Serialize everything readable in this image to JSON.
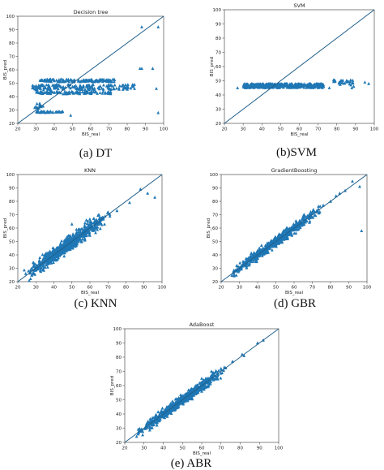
{
  "figure": {
    "marker_color": "#1f77b4",
    "line_color": "#1f5f8b"
  },
  "chart_data": [
    {
      "type": "scatter",
      "title": "Decision tree",
      "caption": "(a) DT",
      "xlabel": "BIS_real",
      "ylabel": "BIS_pred",
      "xlim": [
        20,
        100
      ],
      "ylim": [
        20,
        100
      ],
      "xticks": [
        20,
        30,
        40,
        50,
        60,
        70,
        80,
        90,
        100
      ],
      "yticks": [
        20,
        30,
        40,
        50,
        60,
        70,
        80,
        90,
        100
      ],
      "marker": "triangle",
      "reference_line": "y = x",
      "clusters": [
        {
          "x_range": [
            32,
            73
          ],
          "y_range": [
            51,
            53
          ],
          "count": 140
        },
        {
          "x_range": [
            28,
            84
          ],
          "y_range": [
            45,
            49
          ],
          "count": 170
        },
        {
          "x_range": [
            30,
            71
          ],
          "y_range": [
            42,
            44
          ],
          "count": 100
        },
        {
          "x_range": [
            30,
            45
          ],
          "y_range": [
            28,
            29
          ],
          "count": 40
        },
        {
          "x_range": [
            29,
            34
          ],
          "y_range": [
            31,
            36
          ],
          "count": 14
        }
      ],
      "points": [
        [
          88,
          92
        ],
        [
          97,
          92
        ],
        [
          87,
          61
        ],
        [
          88,
          61
        ],
        [
          94,
          61
        ],
        [
          84,
          46
        ],
        [
          96,
          46
        ],
        [
          97,
          28
        ],
        [
          49,
          26
        ],
        [
          31,
          30
        ],
        [
          32,
          35
        ]
      ]
    },
    {
      "type": "scatter",
      "title": "SVM",
      "caption": "(b)SVM",
      "xlabel": "BIS_real",
      "ylabel": "BIS_pred",
      "xlim": [
        20,
        100
      ],
      "ylim": [
        20,
        100
      ],
      "xticks": [
        20,
        30,
        40,
        50,
        60,
        70,
        80,
        90,
        100
      ],
      "yticks": [
        20,
        30,
        40,
        50,
        60,
        70,
        80,
        90,
        100
      ],
      "marker": "triangle",
      "reference_line": "y = x",
      "clusters": [
        {
          "x_range": [
            30,
            73
          ],
          "y_range": [
            45,
            48
          ],
          "count": 420
        },
        {
          "x_range": [
            78,
            89
          ],
          "y_range": [
            47,
            51
          ],
          "count": 30
        }
      ],
      "points": [
        [
          27,
          45
        ],
        [
          76,
          45
        ],
        [
          95,
          49
        ],
        [
          97,
          48
        ],
        [
          88,
          45
        ],
        [
          89,
          46
        ]
      ]
    },
    {
      "type": "scatter",
      "title": "KNN",
      "caption": "(c) KNN",
      "xlabel": "BIS_real",
      "ylabel": "BIS_pred",
      "xlim": [
        20,
        100
      ],
      "ylim": [
        20,
        100
      ],
      "xticks": [
        20,
        30,
        40,
        50,
        60,
        70,
        80,
        90,
        100
      ],
      "yticks": [
        20,
        30,
        40,
        50,
        60,
        70,
        80,
        90,
        100
      ],
      "marker": "triangle",
      "reference_line": "y = x",
      "diagonal_band": {
        "x_range": [
          23,
          72
        ],
        "spread": 6,
        "count": 650
      },
      "points": [
        [
          88,
          89
        ],
        [
          92,
          86
        ],
        [
          96,
          83
        ],
        [
          70,
          72
        ],
        [
          75,
          73
        ],
        [
          58,
          66
        ],
        [
          62,
          67
        ],
        [
          65,
          70
        ],
        [
          82,
          79
        ],
        [
          50,
          63
        ]
      ]
    },
    {
      "type": "scatter",
      "title": "GradientBoosting",
      "caption": "(d) GBR",
      "xlabel": "BIS_real",
      "ylabel": "BIS_pred",
      "xlim": [
        20,
        100
      ],
      "ylim": [
        20,
        100
      ],
      "xticks": [
        20,
        30,
        40,
        50,
        60,
        70,
        80,
        90,
        100
      ],
      "yticks": [
        20,
        30,
        40,
        50,
        60,
        70,
        80,
        90,
        100
      ],
      "marker": "triangle",
      "reference_line": "y = x",
      "diagonal_band": {
        "x_range": [
          24,
          75
        ],
        "spread": 4,
        "count": 650
      },
      "points": [
        [
          92,
          95
        ],
        [
          96,
          91
        ],
        [
          88,
          88
        ],
        [
          85,
          86
        ],
        [
          80,
          80
        ],
        [
          76,
          77
        ],
        [
          97,
          58
        ],
        [
          65,
          69
        ],
        [
          70,
          72
        ],
        [
          83,
          84
        ]
      ]
    },
    {
      "type": "scatter",
      "title": "AdaBoost",
      "caption": "(e) ABR",
      "xlabel": "BIS_real",
      "ylabel": "BIS_pred",
      "xlim": [
        20,
        100
      ],
      "ylim": [
        20,
        100
      ],
      "xticks": [
        20,
        30,
        40,
        50,
        60,
        70,
        80,
        90,
        100
      ],
      "yticks": [
        20,
        30,
        40,
        50,
        60,
        70,
        80,
        90,
        100
      ],
      "marker": "triangle",
      "reference_line": "y = x",
      "diagonal_band": {
        "x_range": [
          25,
          73
        ],
        "spread": 4,
        "count": 650
      },
      "points": [
        [
          92,
          92
        ],
        [
          89,
          90
        ],
        [
          81,
          82
        ],
        [
          82,
          81
        ],
        [
          76,
          77
        ],
        [
          60,
          65
        ],
        [
          65,
          70
        ],
        [
          70,
          72
        ]
      ]
    }
  ]
}
